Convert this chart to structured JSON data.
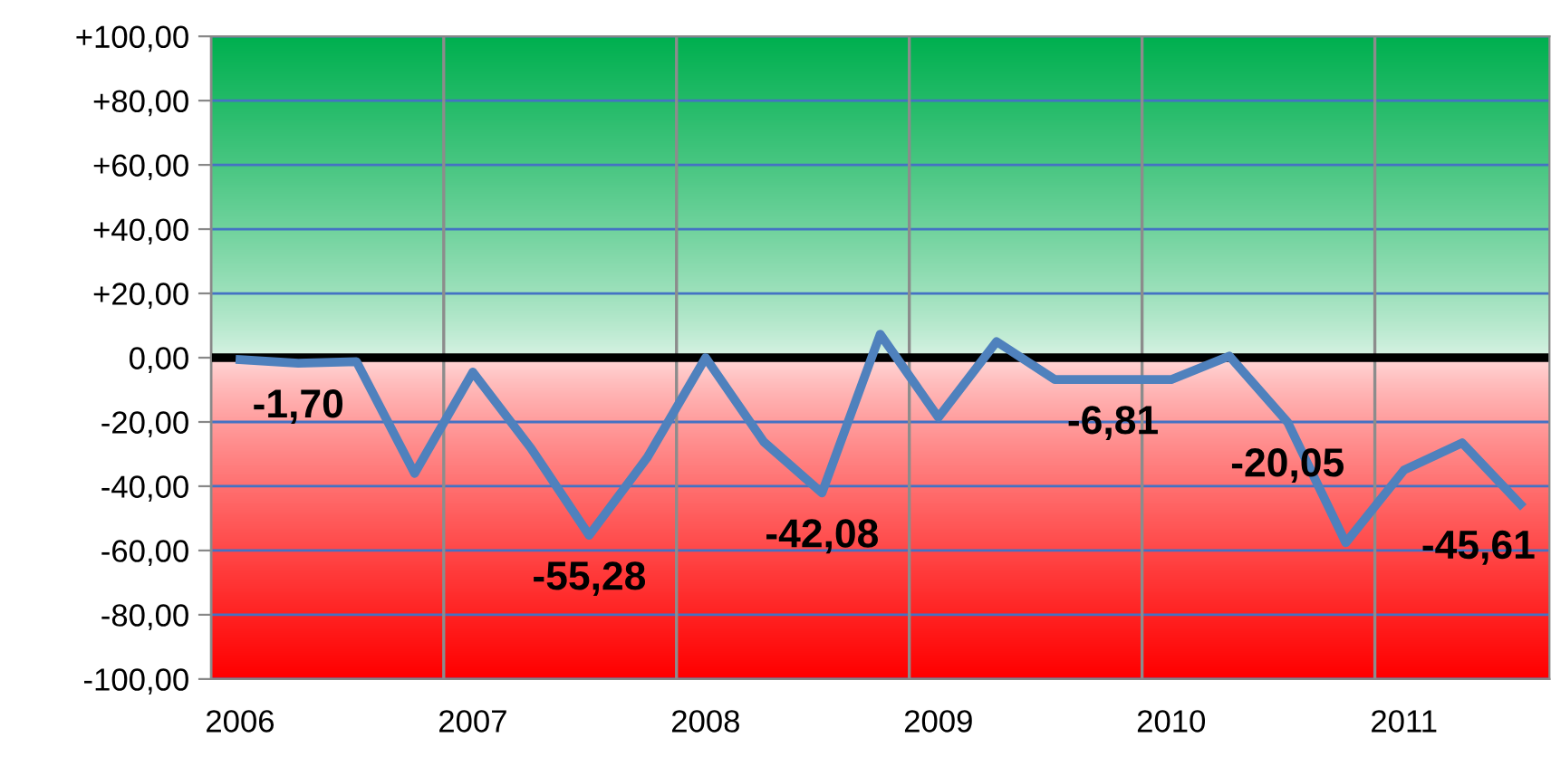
{
  "chart_data": {
    "type": "line",
    "categories": [
      "2006",
      null,
      null,
      null,
      "2007",
      null,
      null,
      null,
      "2008",
      null,
      null,
      null,
      "2009",
      null,
      null,
      null,
      "2010",
      null,
      null,
      null,
      "2011",
      null,
      null
    ],
    "series": [
      {
        "color": "#4f81bd",
        "values": [
          -0.6,
          -1.7,
          -1.2,
          -36,
          -4.5,
          -28.2,
          -55.28,
          -31,
          0,
          -26.2,
          -42.08,
          7.3,
          -18.6,
          5,
          -6.8,
          -6.81,
          -6.8,
          0.5,
          -20.05,
          -57.6,
          -35,
          -26.5,
          -45.61
        ],
        "value_labels": [
          null,
          "-1,70",
          null,
          null,
          null,
          null,
          "-55,28",
          null,
          null,
          null,
          "-42,08",
          null,
          null,
          null,
          null,
          "-6,81",
          null,
          null,
          "-20,05",
          null,
          null,
          null,
          "-45,61"
        ]
      }
    ],
    "ylim": [
      -100,
      100
    ],
    "yticks": [
      {
        "value": 100,
        "label": "+100,00"
      },
      {
        "value": 80,
        "label": "+80,00"
      },
      {
        "value": 60,
        "label": "+60,00"
      },
      {
        "value": 40,
        "label": "+40,00"
      },
      {
        "value": 20,
        "label": "+20,00"
      },
      {
        "value": 0,
        "label": "0,00"
      },
      {
        "value": -20,
        "label": "-20,00"
      },
      {
        "value": -40,
        "label": "-40,00"
      },
      {
        "value": -60,
        "label": "-60,00"
      },
      {
        "value": -80,
        "label": "-80,00"
      },
      {
        "value": -100,
        "label": "-100,00"
      }
    ],
    "ref_lines": [
      {
        "axis": "y",
        "value": 0,
        "color": "#000000"
      }
    ],
    "bands": [
      {
        "axis": "y",
        "from": 0,
        "to": 100,
        "color": "#00b050"
      },
      {
        "axis": "y",
        "from": -100,
        "to": 0,
        "color": "#ff0000"
      }
    ],
    "grid": true,
    "marker": "none",
    "line_style": "solid"
  }
}
